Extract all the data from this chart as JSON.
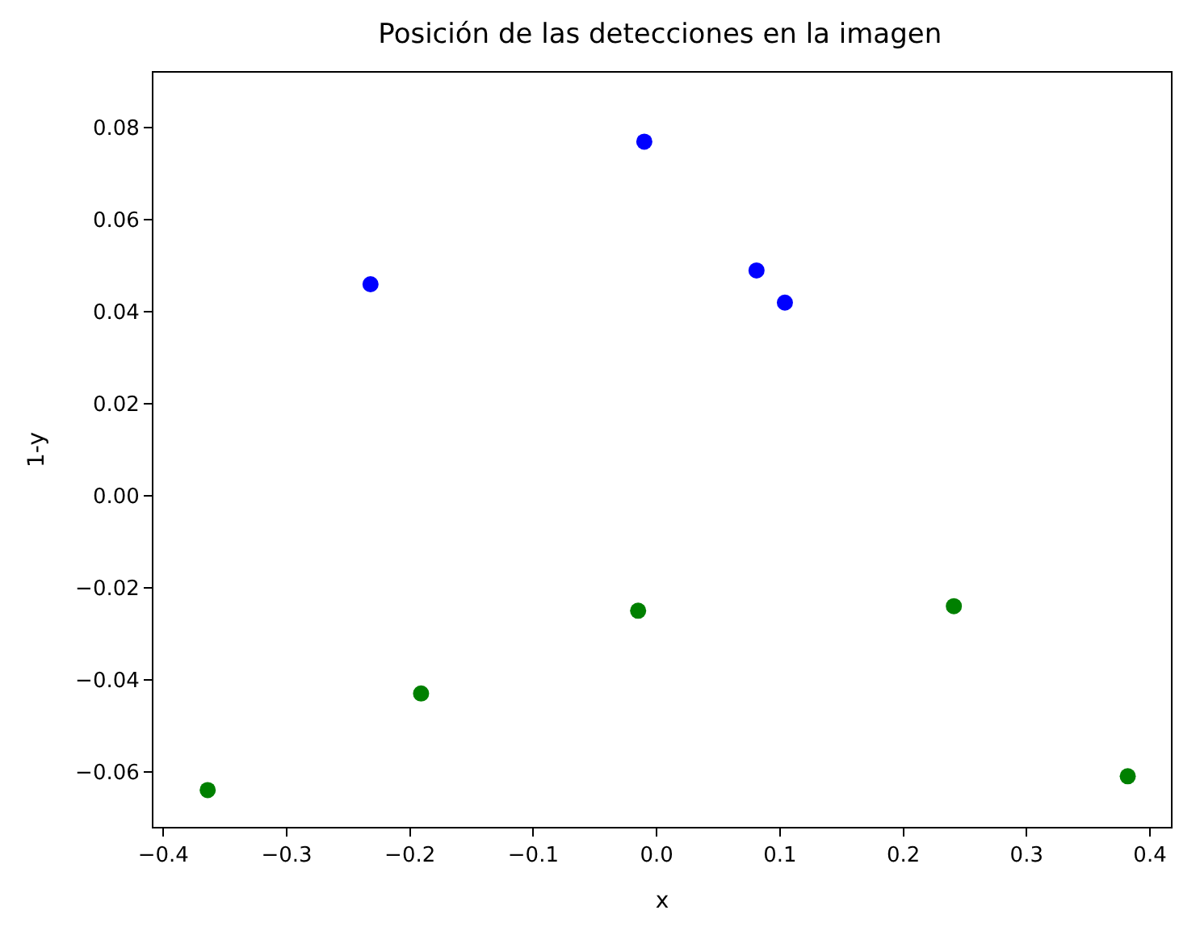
{
  "chart_data": {
    "type": "scatter",
    "title": "Posición de las detecciones en la imagen",
    "xlabel": "x",
    "ylabel": "1-y",
    "series": [
      {
        "color": "#0000ff",
        "x": [
          -0.232,
          -0.01,
          0.081,
          0.104
        ],
        "values": [
          0.046,
          0.077,
          0.049,
          0.042
        ]
      },
      {
        "color": "#008000",
        "x": [
          -0.364,
          -0.191,
          -0.015,
          0.241,
          0.382
        ],
        "values": [
          -0.064,
          -0.043,
          -0.025,
          -0.024,
          -0.061
        ]
      }
    ],
    "xlim": [
      -0.408,
      0.417
    ],
    "ylim": [
      -0.072,
      0.092
    ],
    "xticks": [
      {
        "value": -0.4,
        "label": "−0.4"
      },
      {
        "value": -0.3,
        "label": "−0.3"
      },
      {
        "value": -0.2,
        "label": "−0.2"
      },
      {
        "value": -0.1,
        "label": "−0.1"
      },
      {
        "value": 0.0,
        "label": "0.0"
      },
      {
        "value": 0.1,
        "label": "0.1"
      },
      {
        "value": 0.2,
        "label": "0.2"
      },
      {
        "value": 0.3,
        "label": "0.3"
      },
      {
        "value": 0.4,
        "label": "0.4"
      }
    ],
    "yticks": [
      {
        "value": -0.06,
        "label": "−0.06"
      },
      {
        "value": -0.04,
        "label": "−0.04"
      },
      {
        "value": -0.02,
        "label": "−0.02"
      },
      {
        "value": 0.0,
        "label": "0.00"
      },
      {
        "value": 0.02,
        "label": "0.02"
      },
      {
        "value": 0.04,
        "label": "0.04"
      },
      {
        "value": 0.06,
        "label": "0.06"
      },
      {
        "value": 0.08,
        "label": "0.08"
      }
    ],
    "marker": "circle"
  }
}
